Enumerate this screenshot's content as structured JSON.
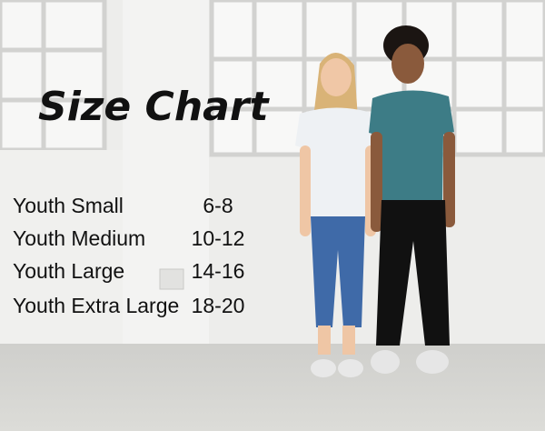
{
  "title": "Size Chart",
  "table": {
    "rows": [
      [
        "Youth Small",
        "6-8"
      ],
      [
        "Youth Medium",
        "10-12"
      ],
      [
        "Youth Large",
        "14-16"
      ],
      [
        "Youth Extra Large",
        "18-20"
      ]
    ]
  }
}
